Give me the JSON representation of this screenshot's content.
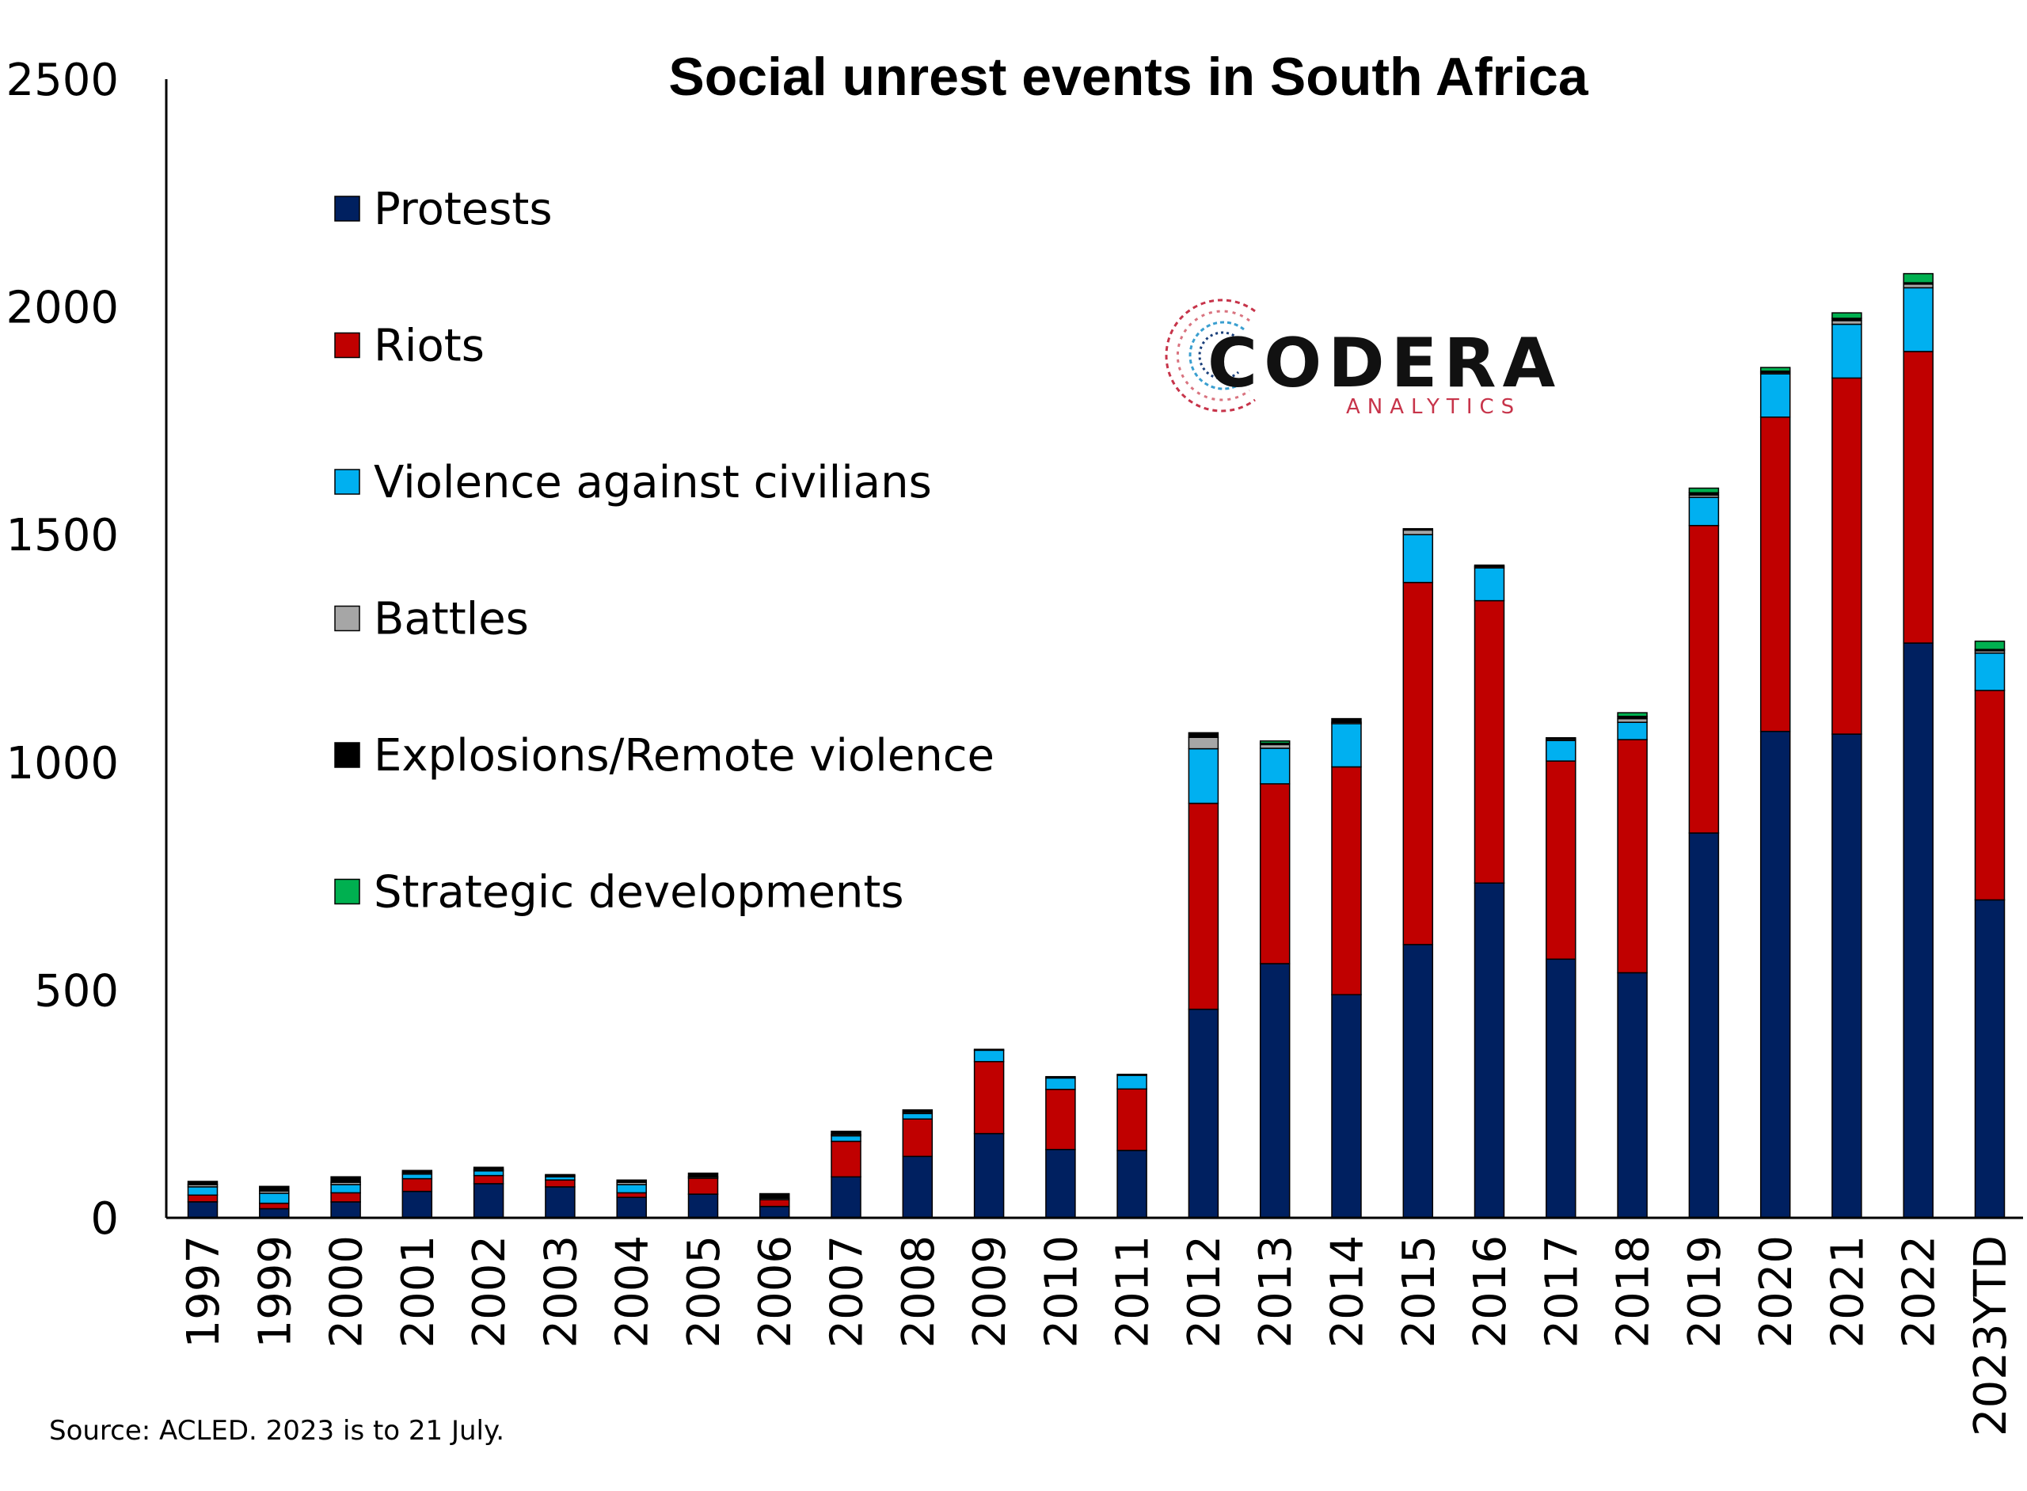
{
  "chart_data": {
    "type": "bar",
    "stacked": true,
    "title": "Social unrest events in South Africa",
    "source_note": "Source: ACLED. 2023 is to 21 July.",
    "logo": {
      "name": "CODERA",
      "sub": "ANALYTICS"
    },
    "ylim": [
      0,
      2500
    ],
    "yticks": [
      "0",
      "500",
      "1000",
      "1500",
      "2000",
      "2500"
    ],
    "grid": false,
    "legend_position": "top-left",
    "categories": [
      "1997",
      "1999",
      "2000",
      "2001",
      "2002",
      "2003",
      "2004",
      "2005",
      "2006",
      "2007",
      "2008",
      "2009",
      "2010",
      "2011",
      "2012",
      "2013",
      "2014",
      "2015",
      "2016",
      "2017",
      "2018",
      "2019",
      "2020",
      "2021",
      "2022",
      "2023YTD"
    ],
    "series": [
      {
        "name": "Protests",
        "color": "#002060",
        "values": [
          35,
          20,
          35,
          58,
          75,
          68,
          45,
          52,
          25,
          90,
          135,
          185,
          150,
          148,
          458,
          558,
          490,
          600,
          735,
          568,
          538,
          845,
          1068,
          1062,
          1262,
          698
        ]
      },
      {
        "name": "Riots",
        "color": "#C00000",
        "values": [
          15,
          12,
          20,
          28,
          18,
          15,
          10,
          35,
          15,
          78,
          82,
          158,
          132,
          135,
          452,
          395,
          500,
          795,
          620,
          435,
          512,
          675,
          690,
          782,
          640,
          460
        ]
      },
      {
        "name": "Violence against civilians",
        "color": "#00B0F0",
        "values": [
          18,
          22,
          18,
          10,
          10,
          7,
          18,
          0,
          0,
          12,
          12,
          25,
          25,
          30,
          120,
          78,
          95,
          105,
          72,
          45,
          38,
          62,
          95,
          118,
          140,
          82
        ]
      },
      {
        "name": "Battles",
        "color": "#A6A6A6",
        "values": [
          5,
          5,
          5,
          3,
          3,
          3,
          5,
          3,
          3,
          3,
          3,
          0,
          0,
          0,
          25,
          8,
          3,
          10,
          3,
          3,
          8,
          5,
          3,
          8,
          8,
          5
        ]
      },
      {
        "name": "Explosions/Remote violence",
        "color": "#000000",
        "values": [
          7,
          10,
          12,
          5,
          5,
          2,
          5,
          8,
          10,
          7,
          5,
          2,
          3,
          2,
          10,
          3,
          8,
          3,
          3,
          3,
          5,
          5,
          3,
          5,
          3,
          3
        ]
      },
      {
        "name": "Strategic developments",
        "color": "#00B050",
        "values": [
          0,
          0,
          0,
          0,
          0,
          0,
          0,
          0,
          0,
          0,
          0,
          0,
          0,
          0,
          0,
          5,
          0,
          0,
          0,
          0,
          8,
          10,
          8,
          12,
          20,
          18
        ]
      }
    ]
  }
}
